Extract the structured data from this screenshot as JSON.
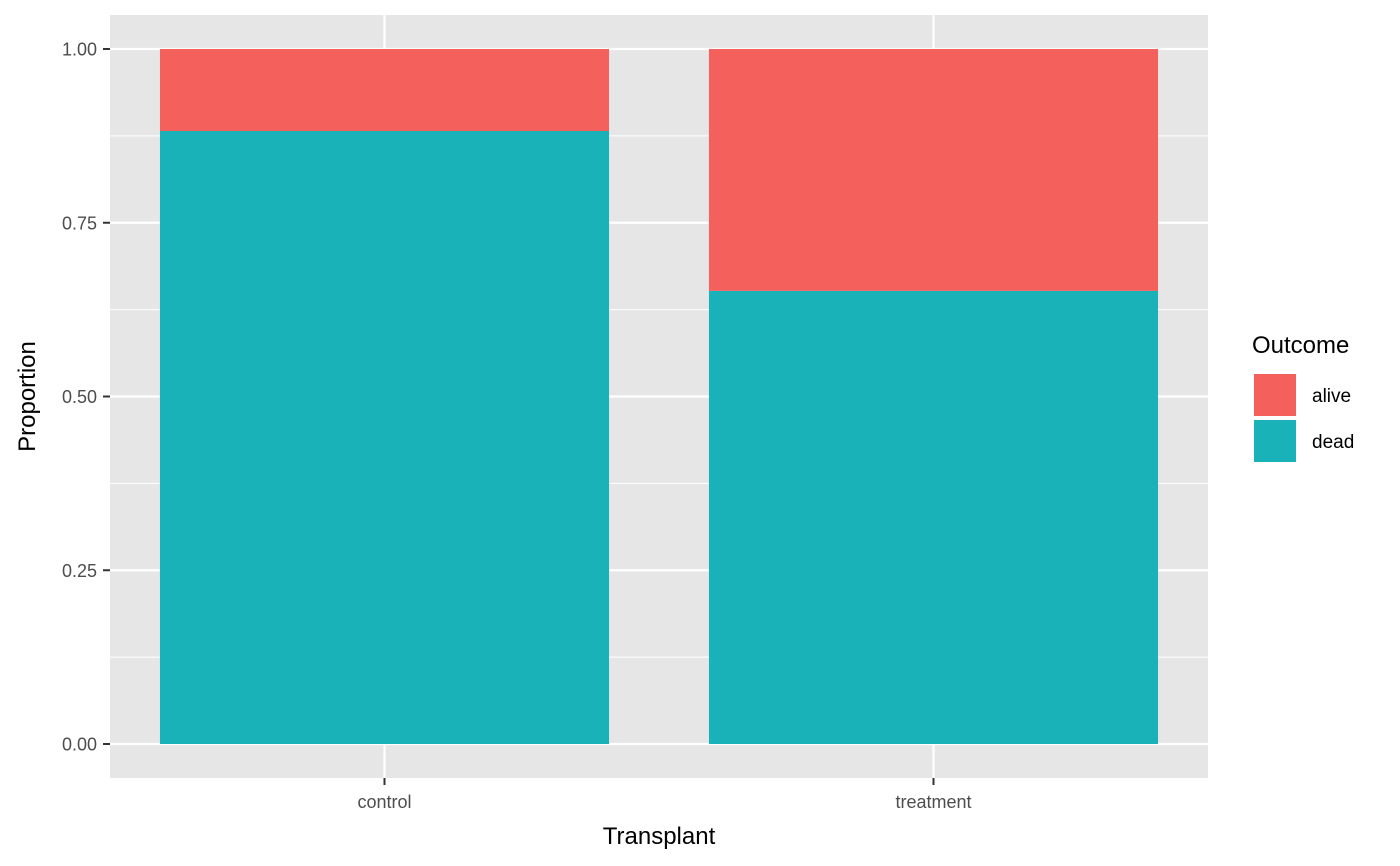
{
  "chart_data": {
    "type": "bar",
    "stacked": true,
    "categories": [
      "control",
      "treatment"
    ],
    "series": [
      {
        "name": "dead",
        "values": [
          0.882,
          0.652
        ],
        "color": "#19B2B9"
      },
      {
        "name": "alive",
        "values": [
          0.118,
          0.348
        ],
        "color": "#F4605C"
      }
    ],
    "xlabel": "Transplant",
    "ylabel": "Proportion",
    "ylim": [
      0,
      1
    ],
    "yticks": [
      0,
      0.25,
      0.5,
      0.75,
      1
    ],
    "ytick_labels": [
      "0.00",
      "0.25",
      "0.50",
      "0.75",
      "1.00"
    ],
    "grid": true,
    "legend": {
      "title": "Outcome",
      "placement": "right",
      "entries": [
        {
          "label": "alive",
          "color": "#F4605C"
        },
        {
          "label": "dead",
          "color": "#19B2B9"
        }
      ]
    },
    "panel_background": "#E6E6E6",
    "gridline_color": "#FFFFFF"
  }
}
